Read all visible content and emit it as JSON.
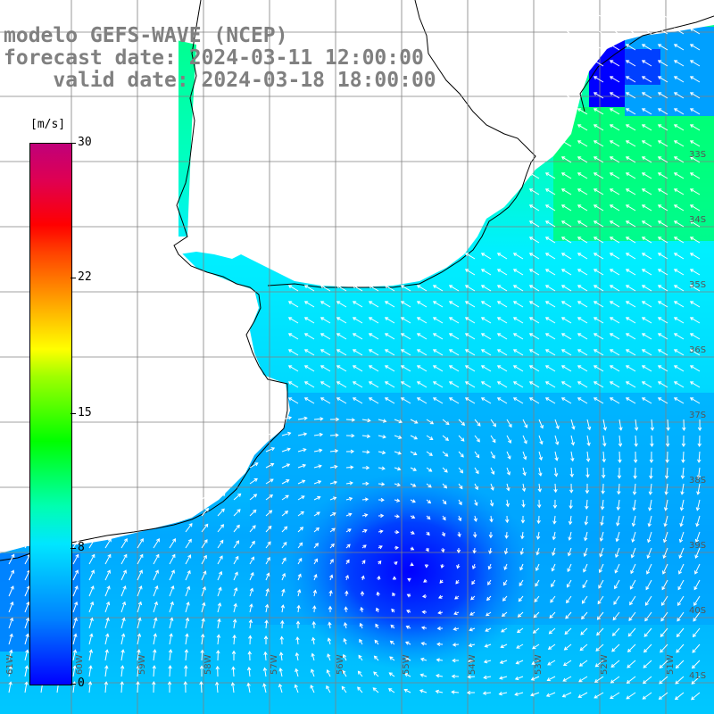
{
  "titles": {
    "line1": "modelo GEFS-WAVE (NCEP)",
    "line2": "forecast date: 2024-03-11 12:00:00",
    "line3": "    valid date: 2024-03-18 18:00:00"
  },
  "colorbar": {
    "unit": "[m/s]",
    "ticks": [
      "30",
      "22",
      "15",
      "8",
      "0"
    ],
    "min": 0,
    "max": 30
  },
  "map_data": {
    "field": "wind speed with direction arrows",
    "lat_labels": [
      "33S",
      "34S",
      "35S",
      "36S",
      "37S",
      "38S",
      "39S",
      "40S",
      "41S"
    ],
    "lon_labels": [
      "61W",
      "60W",
      "59W",
      "58W",
      "57W",
      "56W",
      "55W",
      "54W",
      "53W",
      "52W",
      "51W"
    ],
    "speed_range_shown": [
      2,
      14
    ]
  }
}
